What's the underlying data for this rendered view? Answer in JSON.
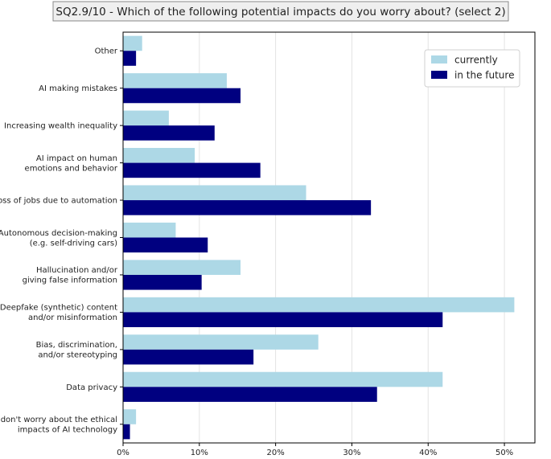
{
  "chart_data": {
    "type": "bar",
    "orientation": "horizontal",
    "title": "SQ2.9/10 - Which of the following potential impacts do you worry about? (select 2)",
    "categories": [
      [
        "Other"
      ],
      [
        "AI making mistakes"
      ],
      [
        "Increasing wealth inequality"
      ],
      [
        "AI impact on human",
        "emotions and behavior"
      ],
      [
        "Loss of jobs due to automation"
      ],
      [
        "Autonomous decision-making",
        "(e.g. self-driving cars)"
      ],
      [
        "Hallucination and/or",
        "giving false information"
      ],
      [
        "Deepfake (synthetic) content",
        "and/or misinformation"
      ],
      [
        "Bias, discrimination,",
        "and/or stereotyping"
      ],
      [
        "Data privacy"
      ],
      [
        "I don't worry about the ethical",
        "impacts of AI technology"
      ]
    ],
    "series": [
      {
        "name": "currently",
        "color": "#add8e6",
        "values": [
          2.5,
          13.6,
          6.0,
          9.4,
          24.0,
          6.9,
          15.4,
          51.3,
          25.6,
          41.9,
          1.7
        ]
      },
      {
        "name": "in the future",
        "color": "#000080",
        "values": [
          1.7,
          15.4,
          12.0,
          18.0,
          32.5,
          11.1,
          10.3,
          41.9,
          17.1,
          33.3,
          0.9
        ]
      }
    ],
    "xlim": [
      0,
      54
    ],
    "xticks": [
      0,
      10,
      20,
      30,
      40,
      50
    ],
    "xtick_labels": [
      "0%",
      "10%",
      "20%",
      "30%",
      "40%",
      "50%"
    ],
    "xlabel": "",
    "ylabel": "",
    "grid": "vertical",
    "legend_position": "top-right"
  }
}
